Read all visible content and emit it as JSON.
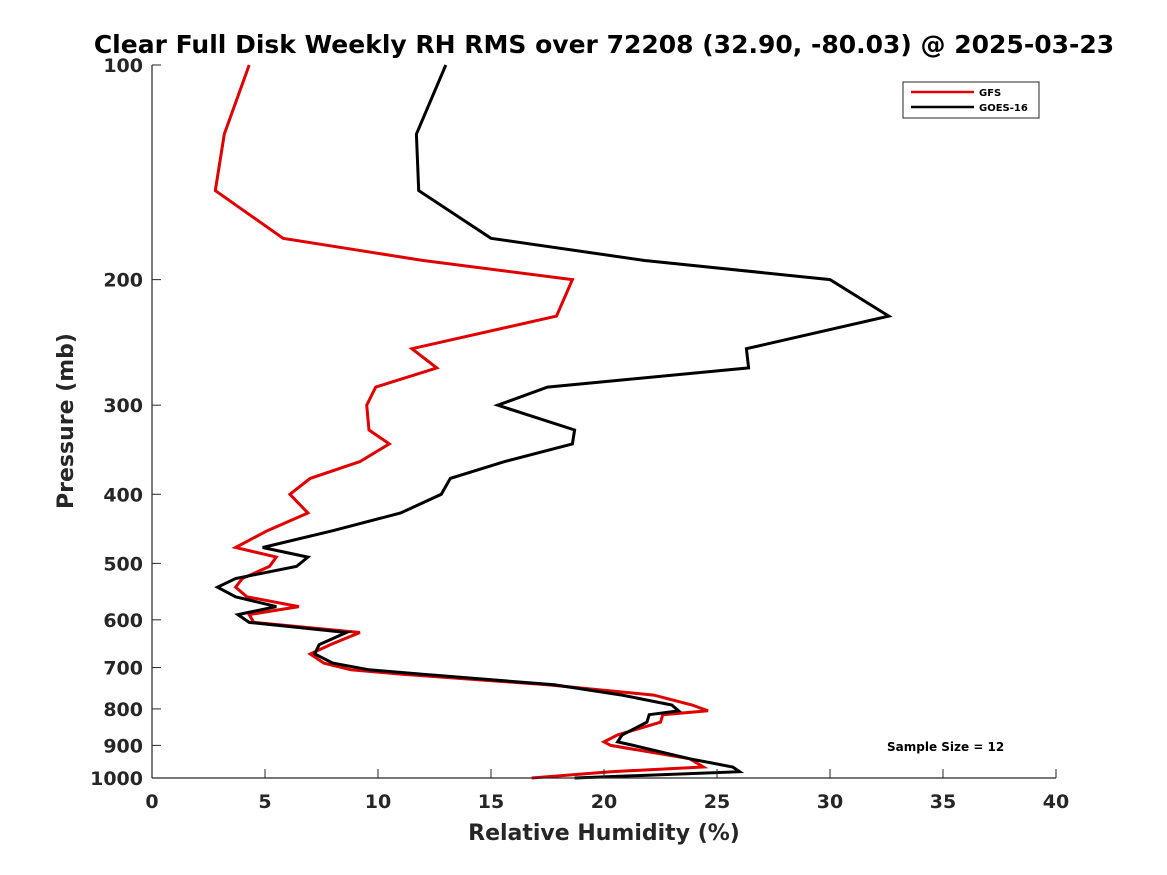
{
  "chart_data": {
    "type": "line",
    "title": "Clear Full Disk Weekly RH RMS over 72208 (32.90, -80.03) @ 2025-03-23",
    "xlabel": "Relative Humidity (%)",
    "ylabel": "Pressure (mb)",
    "xlim": [
      0,
      40
    ],
    "ylim": [
      1000,
      100
    ],
    "y_scale": "log",
    "y_reversed": true,
    "xticks": [
      0,
      5,
      10,
      15,
      20,
      25,
      30,
      35,
      40
    ],
    "yticks": [
      100,
      200,
      300,
      400,
      500,
      600,
      700,
      800,
      900,
      1000
    ],
    "grid": false,
    "legend_position": "top-right",
    "annotation": "Sample Size = 12",
    "series": [
      {
        "name": "GFS",
        "color": "#e00000",
        "points": [
          {
            "x": 4.3,
            "p": 100
          },
          {
            "x": 3.2,
            "p": 125
          },
          {
            "x": 2.8,
            "p": 150
          },
          {
            "x": 5.8,
            "p": 175
          },
          {
            "x": 12.0,
            "p": 188
          },
          {
            "x": 18.6,
            "p": 200
          },
          {
            "x": 17.9,
            "p": 225
          },
          {
            "x": 11.5,
            "p": 250
          },
          {
            "x": 12.6,
            "p": 266
          },
          {
            "x": 9.9,
            "p": 283
          },
          {
            "x": 9.5,
            "p": 300
          },
          {
            "x": 9.6,
            "p": 325
          },
          {
            "x": 10.5,
            "p": 340
          },
          {
            "x": 9.2,
            "p": 360
          },
          {
            "x": 7.0,
            "p": 380
          },
          {
            "x": 6.1,
            "p": 400
          },
          {
            "x": 6.9,
            "p": 425
          },
          {
            "x": 5.1,
            "p": 450
          },
          {
            "x": 3.7,
            "p": 475
          },
          {
            "x": 5.5,
            "p": 490
          },
          {
            "x": 5.2,
            "p": 505
          },
          {
            "x": 4.0,
            "p": 525
          },
          {
            "x": 3.7,
            "p": 540
          },
          {
            "x": 4.2,
            "p": 557
          },
          {
            "x": 6.5,
            "p": 575
          },
          {
            "x": 4.3,
            "p": 590
          },
          {
            "x": 4.5,
            "p": 605
          },
          {
            "x": 9.2,
            "p": 625
          },
          {
            "x": 7.9,
            "p": 650
          },
          {
            "x": 7.0,
            "p": 670
          },
          {
            "x": 7.6,
            "p": 690
          },
          {
            "x": 8.8,
            "p": 705
          },
          {
            "x": 11.0,
            "p": 715
          },
          {
            "x": 17.5,
            "p": 740
          },
          {
            "x": 22.2,
            "p": 765
          },
          {
            "x": 23.9,
            "p": 790
          },
          {
            "x": 24.6,
            "p": 805
          },
          {
            "x": 22.6,
            "p": 815
          },
          {
            "x": 22.5,
            "p": 835
          },
          {
            "x": 20.6,
            "p": 870
          },
          {
            "x": 20.0,
            "p": 890
          },
          {
            "x": 20.3,
            "p": 900
          },
          {
            "x": 23.8,
            "p": 940
          },
          {
            "x": 24.4,
            "p": 965
          },
          {
            "x": 20.3,
            "p": 980
          },
          {
            "x": 16.8,
            "p": 1000
          }
        ]
      },
      {
        "name": "GOES-16",
        "color": "#000000",
        "points": [
          {
            "x": 13.0,
            "p": 100
          },
          {
            "x": 11.7,
            "p": 125
          },
          {
            "x": 11.8,
            "p": 150
          },
          {
            "x": 15.0,
            "p": 175
          },
          {
            "x": 21.8,
            "p": 188
          },
          {
            "x": 30.0,
            "p": 200
          },
          {
            "x": 32.6,
            "p": 225
          },
          {
            "x": 26.3,
            "p": 250
          },
          {
            "x": 26.4,
            "p": 266
          },
          {
            "x": 17.5,
            "p": 283
          },
          {
            "x": 15.3,
            "p": 300
          },
          {
            "x": 18.7,
            "p": 325
          },
          {
            "x": 18.6,
            "p": 340
          },
          {
            "x": 15.6,
            "p": 360
          },
          {
            "x": 13.2,
            "p": 380
          },
          {
            "x": 12.8,
            "p": 400
          },
          {
            "x": 11.0,
            "p": 425
          },
          {
            "x": 8.0,
            "p": 450
          },
          {
            "x": 4.9,
            "p": 475
          },
          {
            "x": 6.9,
            "p": 490
          },
          {
            "x": 6.4,
            "p": 505
          },
          {
            "x": 3.7,
            "p": 525
          },
          {
            "x": 2.9,
            "p": 540
          },
          {
            "x": 3.7,
            "p": 557
          },
          {
            "x": 5.5,
            "p": 575
          },
          {
            "x": 3.8,
            "p": 590
          },
          {
            "x": 4.3,
            "p": 605
          },
          {
            "x": 8.6,
            "p": 625
          },
          {
            "x": 7.4,
            "p": 650
          },
          {
            "x": 7.2,
            "p": 670
          },
          {
            "x": 8.0,
            "p": 690
          },
          {
            "x": 9.6,
            "p": 705
          },
          {
            "x": 11.9,
            "p": 715
          },
          {
            "x": 17.8,
            "p": 740
          },
          {
            "x": 20.8,
            "p": 765
          },
          {
            "x": 23.0,
            "p": 790
          },
          {
            "x": 23.3,
            "p": 805
          },
          {
            "x": 22.0,
            "p": 815
          },
          {
            "x": 21.9,
            "p": 835
          },
          {
            "x": 20.8,
            "p": 870
          },
          {
            "x": 20.6,
            "p": 890
          },
          {
            "x": 21.3,
            "p": 900
          },
          {
            "x": 23.8,
            "p": 940
          },
          {
            "x": 25.7,
            "p": 965
          },
          {
            "x": 26.0,
            "p": 980
          },
          {
            "x": 18.7,
            "p": 1000
          }
        ]
      }
    ]
  }
}
